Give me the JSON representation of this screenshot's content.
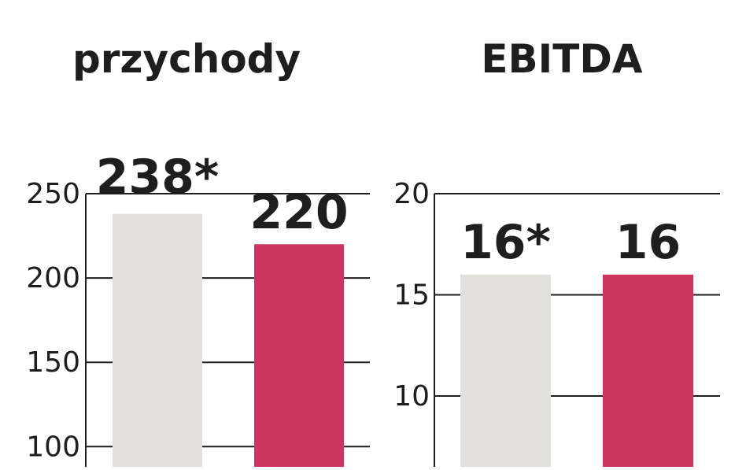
{
  "colors": {
    "bar_gray": "#e1e0dc",
    "bar_red": "#cc355d",
    "text": "#1e1e1e",
    "grid": "#1e1e1e"
  },
  "chart_data": [
    {
      "type": "bar",
      "title": "przychody",
      "categories": [
        "",
        ""
      ],
      "series": [
        {
          "values": [
            238,
            220
          ]
        }
      ],
      "data_labels": [
        "238*",
        "220"
      ],
      "bar_colors": [
        "#e1e0dc",
        "#cc355d"
      ],
      "yticks": [
        250,
        200,
        150,
        100
      ],
      "ylim": [
        88,
        250
      ],
      "grid": true
    },
    {
      "type": "bar",
      "title": "EBITDA",
      "categories": [
        "",
        ""
      ],
      "series": [
        {
          "values": [
            16,
            16
          ]
        }
      ],
      "data_labels": [
        "16*",
        "16"
      ],
      "bar_colors": [
        "#e1e0dc",
        "#cc355d"
      ],
      "yticks": [
        20,
        15,
        10
      ],
      "ylim": [
        6.5,
        20
      ],
      "grid": true
    }
  ]
}
